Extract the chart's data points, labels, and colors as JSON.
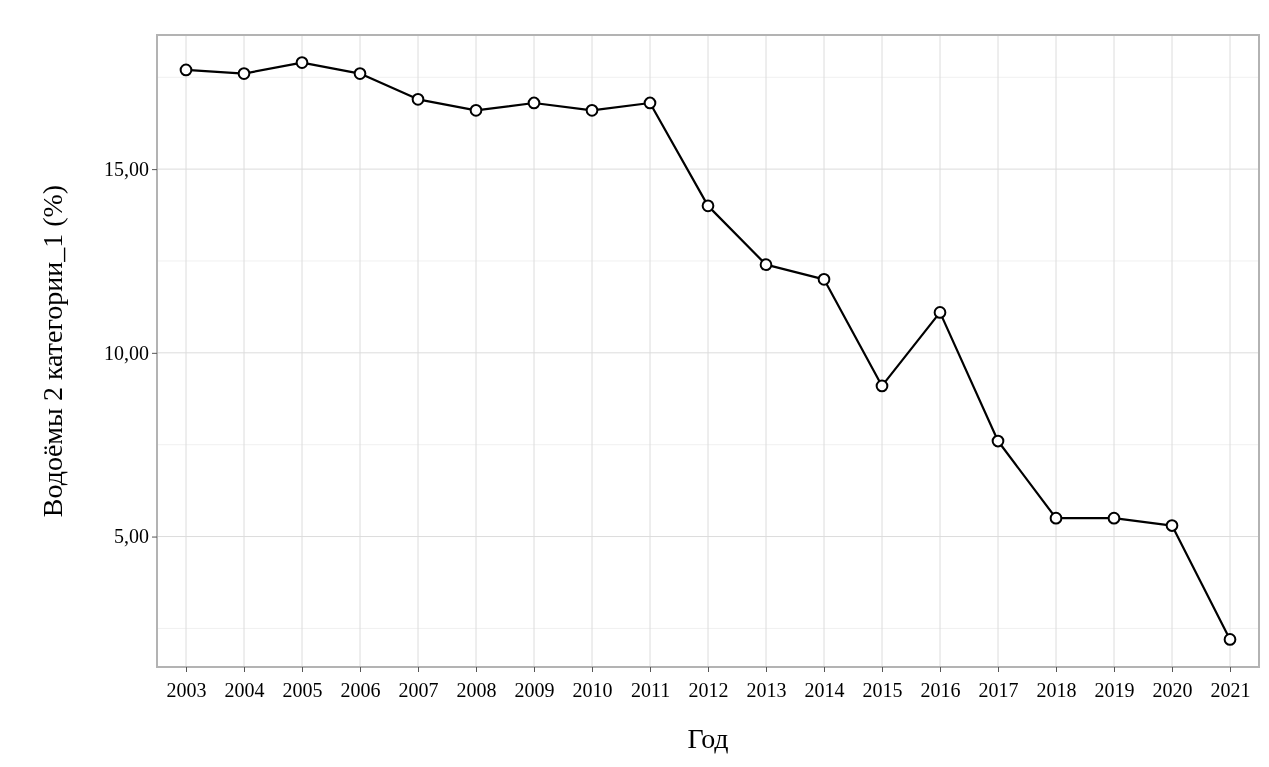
{
  "chart_data": {
    "type": "line",
    "xlabel": "Год",
    "ylabel": "Водоёмы 2 категории_1 (%)",
    "categories": [
      "2003",
      "2004",
      "2005",
      "2006",
      "2007",
      "2008",
      "2009",
      "2010",
      "2011",
      "2012",
      "2013",
      "2014",
      "2015",
      "2016",
      "2017",
      "2018",
      "2019",
      "2020",
      "2021"
    ],
    "series": [
      {
        "color": "#000000",
        "values": [
          17.7,
          17.6,
          17.9,
          17.6,
          16.9,
          16.6,
          16.8,
          16.6,
          16.8,
          14.0,
          12.4,
          12.0,
          9.1,
          11.1,
          7.6,
          5.5,
          5.5,
          5.3,
          2.2
        ]
      }
    ],
    "ylim": [
      1.45,
      18.65
    ],
    "yticks": [
      {
        "value": 2.5,
        "label": null
      },
      {
        "value": 5,
        "label": "5,00"
      },
      {
        "value": 7.5,
        "label": null
      },
      {
        "value": 10,
        "label": "10,00"
      },
      {
        "value": 12.5,
        "label": null
      },
      {
        "value": 15,
        "label": "15,00"
      },
      {
        "value": 17.5,
        "label": null
      }
    ],
    "grid": true,
    "marker": "circle",
    "line_style": "solid"
  }
}
